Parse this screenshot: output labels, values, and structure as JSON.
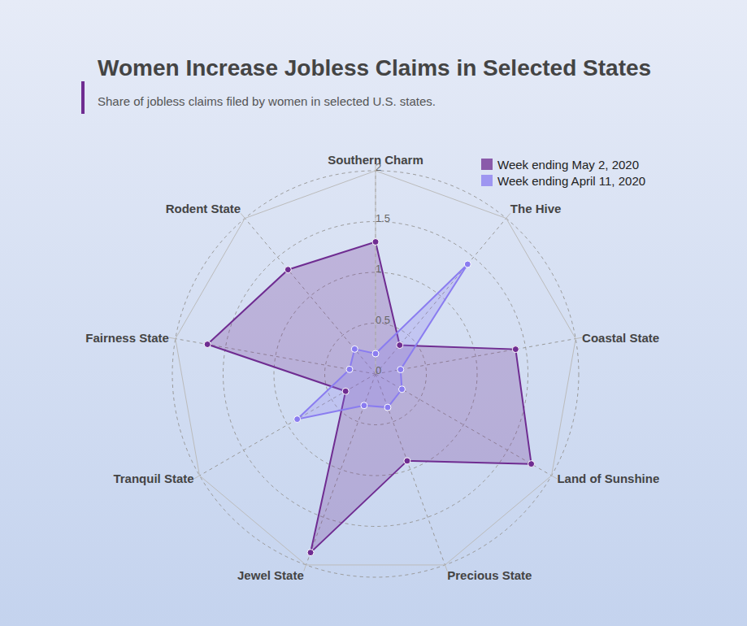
{
  "chart_data": {
    "type": "radar",
    "title": "Women Increase Jobless Claims in Selected States",
    "subtitle": "Share of jobless claims filed by women in selected U.S. states.",
    "categories": [
      "Southern Charm",
      "The Hive",
      "Coastal State",
      "Land of Sunshine",
      "Precious State",
      "Jewel State",
      "Tranquil State",
      "Fairness State",
      "Rodent State"
    ],
    "series": [
      {
        "name": "Week ending May 2, 2020",
        "color": "#6f2c91",
        "values": [
          1.3,
          0.37,
          1.4,
          1.77,
          0.91,
          1.87,
          0.34,
          1.68,
          1.34
        ]
      },
      {
        "name": "Week ending April 11, 2020",
        "color": "#8a7cf0",
        "values": [
          0.2,
          1.41,
          0.25,
          0.3,
          0.35,
          0.33,
          0.89,
          0.26,
          0.32
        ]
      }
    ],
    "ylim": [
      0,
      2
    ],
    "yticks": [
      0,
      0.5,
      1,
      1.5,
      2
    ],
    "grid": true,
    "legend": "top-right"
  }
}
